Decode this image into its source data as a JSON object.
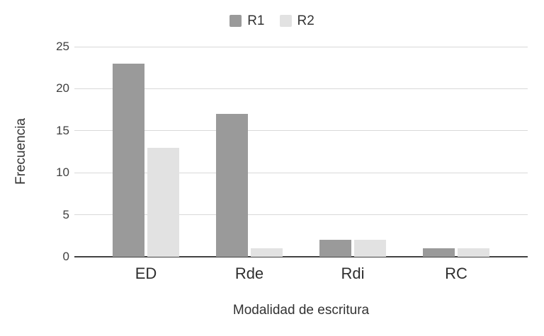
{
  "chart_data": {
    "type": "bar",
    "categories": [
      "ED",
      "Rde",
      "Rdi",
      "RC"
    ],
    "series": [
      {
        "name": "R1",
        "color": "#9a9a9a",
        "values": [
          23,
          17,
          2,
          1
        ]
      },
      {
        "name": "R2",
        "color": "#e2e2e2",
        "values": [
          13,
          1,
          2,
          1
        ]
      }
    ],
    "title": "",
    "xlabel": "Modalidad de escritura",
    "ylabel": "Frecuencia",
    "ylim": [
      0,
      25
    ],
    "yticks": [
      0,
      5,
      10,
      15,
      20,
      25
    ],
    "grid": true,
    "legend_position": "top-center",
    "colors": {
      "background": "#ffffff",
      "gridline": "#d9d9d9",
      "axis_line": "#424242",
      "text": "#333333"
    }
  }
}
